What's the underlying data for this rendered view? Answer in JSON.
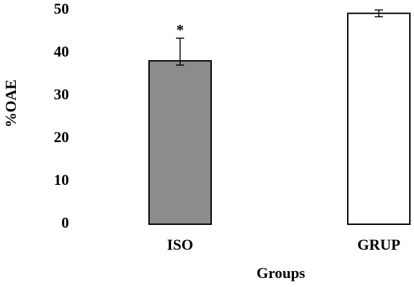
{
  "chart_data": {
    "type": "bar",
    "y_label": "%OAE",
    "x_label": "Groups",
    "categories": [
      "ISO",
      "GRUP"
    ],
    "values": [
      38.2,
      49.3
    ],
    "error_upper": [
      5.3,
      0.8
    ],
    "error_lower": [
      1.0,
      0.8
    ],
    "colors": [
      "#8c8c8c",
      "#ffffff"
    ],
    "annotations": [
      {
        "category": "ISO",
        "text": "*"
      }
    ],
    "ylim": [
      0,
      50
    ],
    "yticks": [
      0,
      10,
      20,
      30,
      40,
      50
    ],
    "grid": false
  }
}
